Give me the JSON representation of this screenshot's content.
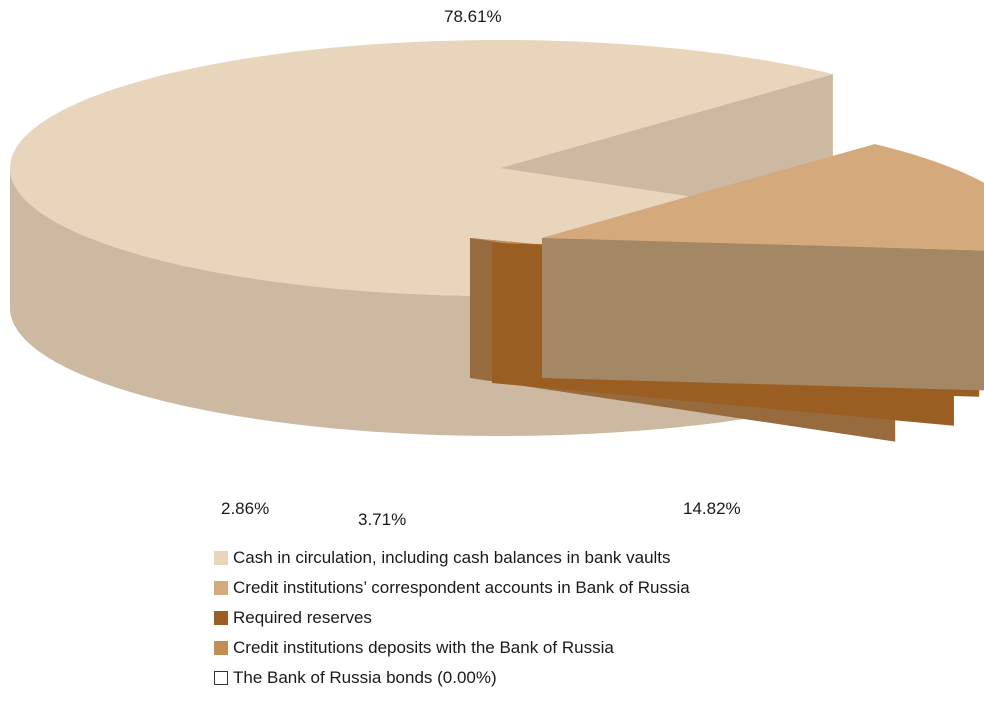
{
  "chart_data": {
    "type": "pie",
    "title": "",
    "slices": [
      {
        "name": "Cash in circulation, including cash balances in bank vaults",
        "value": 78.61,
        "label": "78.61%",
        "color": "#e8d5bb",
        "side_color": "#cdb9a1"
      },
      {
        "name": "Credit institutions’ correspondent accounts in Bank of Russia",
        "value": 14.82,
        "label": "14.82%",
        "color": "#d4aa7d",
        "side_color": "#a48765"
      },
      {
        "name": "Required reserves",
        "value": 3.71,
        "label": "3.71%",
        "color": "#9a5e22",
        "side_color": "#9a5e22"
      },
      {
        "name": "Credit institutions deposits with the Bank of Russia",
        "value": 2.86,
        "label": "2.86%",
        "color": "#c58d55",
        "side_color": "#986b3e"
      },
      {
        "name": "The Bank of Russia  bonds (0.00%)",
        "value": 0.0,
        "label": "",
        "color": "#ffffff",
        "side_color": "#ffffff"
      }
    ],
    "legend_position": "bottom"
  }
}
